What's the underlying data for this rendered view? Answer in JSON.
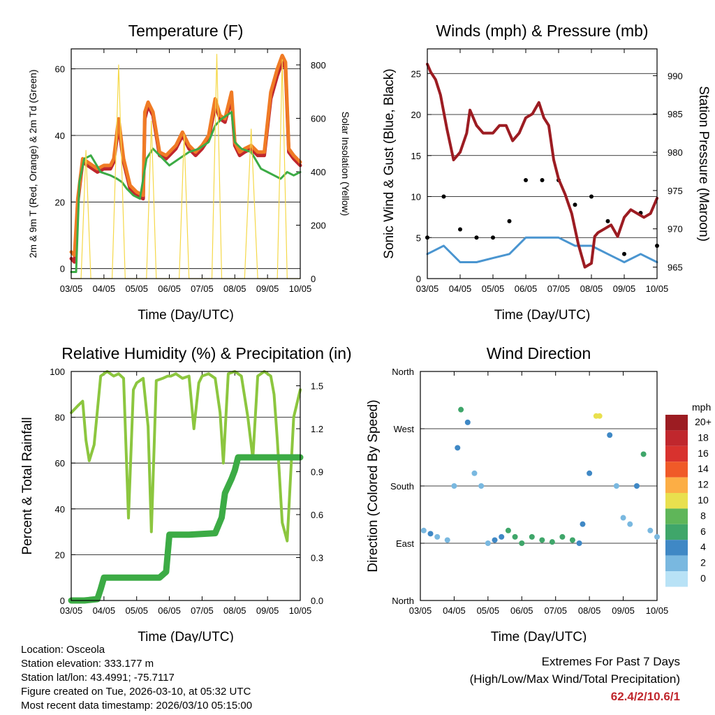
{
  "colors": {
    "red": "#c0272d",
    "orange": "#f07b25",
    "green": "#3cab45",
    "yellow": "#f5d848",
    "black": "#000000",
    "blue": "#4a95d0",
    "maroon": "#9c1c22",
    "rh": "#8cc63f",
    "precip": "#3cab45"
  },
  "footer": {
    "location": "Location: Osceola",
    "elevation": "Station elevation: 333.177 m",
    "latlon": "Station lat/lon: 43.4991; -75.7117",
    "created": "Figure created on Tue, 2026-03-10, at 05:32 UTC",
    "recent": "Most recent data timestamp: 2026/03/10 05:15:00",
    "extremes_title": "Extremes For Past 7 Days",
    "extremes_sub": "(High/Low/Max Wind/Total Precipitation)",
    "extremes_values": "62.4/2/10.6/1"
  },
  "chart_data": [
    {
      "type": "line",
      "title": "Temperature (F)",
      "xlabel": "Time (Day/UTC)",
      "ylabel": "2m & 9m T (Red, Orange) & 2m Td (Green)",
      "ylabel_right": "Solar Insolation (Yellow)",
      "x_ticks": [
        "03/05",
        "04/05",
        "05/05",
        "06/05",
        "07/05",
        "08/05",
        "09/05",
        "10/05"
      ],
      "xlim": [
        0,
        7
      ],
      "ylim": [
        -3,
        66
      ],
      "y_ticks": [
        0,
        20,
        40,
        60
      ],
      "ylim_right": [
        0,
        860
      ],
      "y_ticks_right": [
        0,
        200,
        400,
        600,
        800
      ],
      "grid": true,
      "series": [
        {
          "name": "2m T",
          "color": "#c0272d",
          "x": [
            0,
            0.1,
            0.2,
            0.35,
            0.5,
            0.8,
            1.0,
            1.2,
            1.3,
            1.45,
            1.6,
            1.8,
            2.0,
            2.2,
            2.25,
            2.35,
            2.5,
            2.7,
            2.9,
            3.0,
            3.2,
            3.4,
            3.6,
            3.8,
            4.0,
            4.2,
            4.4,
            4.55,
            4.7,
            4.9,
            5.0,
            5.15,
            5.3,
            5.5,
            5.7,
            5.9,
            6.1,
            6.3,
            6.45,
            6.55,
            6.65,
            6.8,
            7.0
          ],
          "values": [
            3,
            2,
            20,
            32,
            31,
            29,
            30,
            30,
            32,
            43,
            32,
            24,
            22,
            21,
            45,
            49,
            46,
            34,
            33,
            34,
            36,
            40,
            36,
            34,
            36,
            39,
            49,
            45,
            44,
            51,
            37,
            34,
            35,
            36,
            34,
            34,
            51,
            58,
            62,
            60,
            35,
            33,
            31
          ]
        },
        {
          "name": "9m T",
          "color": "#f07b25",
          "x": [
            0,
            0.1,
            0.2,
            0.35,
            0.5,
            0.8,
            1.0,
            1.2,
            1.3,
            1.45,
            1.6,
            1.8,
            2.0,
            2.2,
            2.25,
            2.35,
            2.5,
            2.7,
            2.9,
            3.0,
            3.2,
            3.4,
            3.6,
            3.8,
            4.0,
            4.2,
            4.4,
            4.55,
            4.7,
            4.9,
            5.0,
            5.15,
            5.3,
            5.5,
            5.7,
            5.9,
            6.1,
            6.3,
            6.45,
            6.55,
            6.65,
            6.8,
            7.0
          ],
          "values": [
            5,
            4,
            21,
            33,
            32,
            30,
            31,
            31,
            33,
            45,
            33,
            25,
            23,
            22,
            47,
            50,
            47,
            35,
            34,
            35,
            37,
            41,
            37,
            35,
            37,
            40,
            51,
            46,
            45,
            53,
            38,
            35,
            36,
            37,
            35,
            35,
            53,
            60,
            64,
            62,
            36,
            34,
            32
          ]
        },
        {
          "name": "2m Td",
          "color": "#3cab45",
          "x": [
            0,
            0.15,
            0.25,
            0.4,
            0.6,
            0.9,
            1.2,
            1.4,
            1.55,
            1.7,
            1.9,
            2.1,
            2.3,
            2.5,
            2.8,
            3.0,
            3.3,
            3.6,
            3.9,
            4.2,
            4.4,
            4.6,
            4.9,
            5.0,
            5.2,
            5.5,
            5.8,
            6.0,
            6.2,
            6.4,
            6.6,
            6.8,
            7.0
          ],
          "values": [
            -1,
            -1,
            26,
            33,
            34,
            29,
            28,
            27,
            26,
            24,
            22,
            21,
            33,
            36,
            33,
            31,
            33,
            35,
            36,
            38,
            43,
            45,
            47,
            38,
            36,
            35,
            30,
            29,
            28,
            27,
            29,
            28,
            29
          ]
        },
        {
          "name": "Solar Insolation",
          "color": "#f5d848",
          "axis": "right",
          "x": [
            0,
            0.3,
            0.45,
            0.6,
            1.0,
            1.25,
            1.45,
            1.65,
            2.0,
            2.3,
            2.45,
            2.6,
            3.0,
            3.3,
            3.45,
            3.6,
            4.0,
            4.3,
            4.45,
            4.6,
            5.0,
            5.3,
            5.5,
            5.7,
            6.0,
            6.3,
            6.45,
            6.6,
            7.0
          ],
          "values": [
            0,
            0,
            480,
            0,
            0,
            0,
            800,
            0,
            0,
            0,
            590,
            0,
            0,
            0,
            540,
            0,
            0,
            0,
            840,
            0,
            0,
            0,
            560,
            0,
            0,
            0,
            820,
            0,
            0
          ]
        }
      ]
    },
    {
      "type": "scatter",
      "title": "Winds (mph) & Pressure (mb)",
      "xlabel": "Time (Day/UTC)",
      "ylabel": "Sonic Wind & Gust (Blue, Black)",
      "ylabel_right": "Station Pressure (Maroon)",
      "x_ticks": [
        "03/05",
        "04/05",
        "05/05",
        "06/05",
        "07/05",
        "08/05",
        "09/05",
        "10/05"
      ],
      "xlim": [
        0,
        7
      ],
      "ylim": [
        0,
        28
      ],
      "y_ticks": [
        0,
        5,
        10,
        15,
        20,
        25
      ],
      "ylim_right": [
        963.5,
        993.5
      ],
      "y_ticks_right": [
        965,
        970,
        975,
        980,
        985,
        990
      ],
      "grid": true,
      "series": [
        {
          "name": "Sonic Wind",
          "color": "#4a95d0",
          "x": [
            0,
            0.5,
            1.0,
            1.5,
            2.0,
            2.5,
            3.0,
            3.5,
            4.0,
            4.5,
            5.0,
            5.5,
            6.0,
            6.5,
            7.0
          ],
          "values": [
            3,
            4,
            2,
            2,
            2.5,
            3,
            5,
            5,
            5,
            4,
            4,
            3,
            2,
            3,
            2
          ]
        },
        {
          "name": "Gust",
          "color": "#000000",
          "x": [
            0,
            0.5,
            1.0,
            1.5,
            2.0,
            2.5,
            3.0,
            3.5,
            4.0,
            4.5,
            5.0,
            5.5,
            6.0,
            6.5,
            7.0
          ],
          "values": [
            5,
            10,
            6,
            5,
            5,
            7,
            12,
            12,
            12,
            9,
            10,
            7,
            3,
            8,
            4
          ]
        },
        {
          "name": "Station Pressure",
          "color": "#9c1c22",
          "axis": "right",
          "x": [
            0,
            0.1,
            0.25,
            0.4,
            0.6,
            0.8,
            1.0,
            1.2,
            1.3,
            1.5,
            1.7,
            2.0,
            2.2,
            2.4,
            2.6,
            2.8,
            3.0,
            3.2,
            3.4,
            3.55,
            3.7,
            3.85,
            4.0,
            4.2,
            4.4,
            4.6,
            4.8,
            5.0,
            5.1,
            5.2,
            5.4,
            5.6,
            5.8,
            6.0,
            6.2,
            6.4,
            6.6,
            6.8,
            7.0
          ],
          "values": [
            991.5,
            990.5,
            989.5,
            987.5,
            983,
            979,
            980,
            982.5,
            985.5,
            983.5,
            982.5,
            982.5,
            983.5,
            983.5,
            981.5,
            982.5,
            984.5,
            985,
            986.5,
            984.5,
            983.5,
            979,
            976.5,
            974.5,
            972,
            968,
            965,
            965.5,
            969,
            969.5,
            970,
            970.5,
            969,
            971.5,
            972.5,
            972,
            971.5,
            972,
            974
          ]
        }
      ]
    },
    {
      "type": "line",
      "title": "Relative Humidity (%) & Precipitation (in)",
      "xlabel": "Time (Day/UTC)",
      "ylabel": "Percent & Total Rainfall",
      "x_ticks": [
        "03/05",
        "04/05",
        "05/05",
        "06/05",
        "07/05",
        "08/05",
        "09/05",
        "10/05"
      ],
      "xlim": [
        0,
        7
      ],
      "ylim": [
        0,
        100
      ],
      "y_ticks": [
        0,
        20,
        40,
        60,
        80,
        100
      ],
      "ylim_right": [
        0,
        1.6
      ],
      "y_ticks_right": [
        "0.0",
        "0.3",
        "0.6",
        "0.9",
        "1.2",
        "1.5"
      ],
      "grid": true,
      "series": [
        {
          "name": "Relative Humidity",
          "color": "#8cc63f",
          "x": [
            0,
            0.2,
            0.35,
            0.45,
            0.55,
            0.7,
            0.9,
            1.0,
            1.1,
            1.3,
            1.45,
            1.6,
            1.75,
            1.9,
            2.0,
            2.1,
            2.2,
            2.35,
            2.45,
            2.6,
            2.8,
            2.95,
            3.05,
            3.2,
            3.4,
            3.6,
            3.75,
            3.9,
            4.0,
            4.2,
            4.4,
            4.55,
            4.65,
            4.8,
            5.0,
            5.2,
            5.4,
            5.55,
            5.7,
            5.9,
            6.1,
            6.2,
            6.3,
            6.45,
            6.6,
            6.8,
            7.0
          ],
          "values": [
            82,
            85,
            87,
            70,
            61,
            68,
            98,
            99,
            100,
            98,
            99,
            97,
            36,
            92,
            95,
            96,
            97,
            76,
            30,
            96,
            97,
            98,
            98,
            99,
            97,
            98,
            75,
            95,
            98,
            99,
            97,
            82,
            60,
            99,
            100,
            98,
            80,
            62,
            98,
            100,
            98,
            90,
            70,
            34,
            26,
            80,
            92
          ]
        },
        {
          "name": "Total Precipitation",
          "color": "#3cab45",
          "axis": "right",
          "x": [
            0,
            0.4,
            0.8,
            0.9,
            1.0,
            2.7,
            2.9,
            3.0,
            3.6,
            4.4,
            4.6,
            4.7,
            4.9,
            5.0,
            5.1,
            6.0,
            7.0
          ],
          "values": [
            0,
            0,
            0.01,
            0.08,
            0.16,
            0.16,
            0.2,
            0.46,
            0.46,
            0.47,
            0.58,
            0.75,
            0.85,
            0.91,
            1.0,
            1.0,
            1.0
          ]
        }
      ]
    },
    {
      "type": "scatter",
      "title": "Wind Direction",
      "xlabel": "Time (Day/UTC)",
      "ylabel": "Direction (Colored By Speed)",
      "x_ticks": [
        "03/05",
        "04/05",
        "05/05",
        "06/05",
        "07/05",
        "08/05",
        "09/05",
        "10/05"
      ],
      "xlim": [
        0,
        7
      ],
      "y_ticks": [
        "North",
        "East",
        "South",
        "West",
        "North"
      ],
      "ylim": [
        0,
        360
      ],
      "grid": true,
      "legend": {
        "title": "mph",
        "labels": [
          "20+",
          "18",
          "16",
          "14",
          "12",
          "10",
          "8",
          "6",
          "4",
          "2",
          "0"
        ],
        "colors": [
          "#9c1c22",
          "#c0272d",
          "#d8322e",
          "#f05a28",
          "#fcae45",
          "#e9e04e",
          "#5fb659",
          "#3fa66a",
          "#3f88c5",
          "#79b8e0",
          "#b8e2f6"
        ],
        "placement": "right"
      },
      "series": [
        {
          "name": "Direction",
          "x": [
            0.1,
            0.3,
            0.5,
            0.8,
            1.0,
            1.1,
            1.2,
            1.4,
            1.6,
            1.8,
            2.0,
            2.2,
            2.4,
            2.6,
            2.8,
            3.0,
            3.3,
            3.6,
            3.9,
            4.2,
            4.5,
            4.7,
            4.8,
            5.0,
            5.2,
            5.3,
            5.6,
            5.8,
            6.0,
            6.2,
            6.4,
            6.6,
            6.8,
            7.0
          ],
          "values": [
            110,
            105,
            100,
            95,
            180,
            240,
            300,
            280,
            200,
            180,
            90,
            95,
            100,
            110,
            100,
            90,
            100,
            95,
            92,
            100,
            95,
            90,
            120,
            200,
            290,
            290,
            260,
            180,
            130,
            120,
            180,
            230,
            110,
            100
          ],
          "speeds": [
            2,
            4,
            2,
            1,
            1,
            3,
            5,
            3,
            2,
            1,
            2,
            3,
            4,
            6,
            5,
            6,
            6,
            5,
            6,
            6,
            5,
            4,
            3,
            3,
            9,
            10,
            4,
            1,
            1,
            2,
            4,
            6,
            1,
            2
          ]
        }
      ]
    }
  ]
}
